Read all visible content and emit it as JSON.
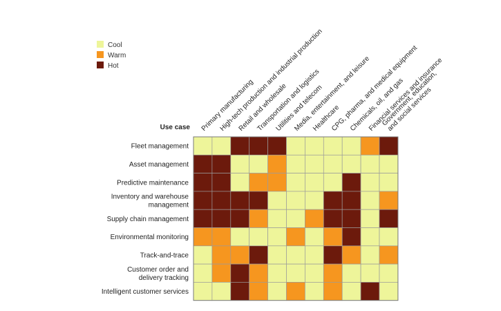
{
  "chart_data": {
    "type": "heatmap",
    "title": "",
    "row_header": "Use case",
    "colors": {
      "Cool": "#eef59a",
      "Warm": "#f6961f",
      "Hot": "#6c1a0c"
    },
    "legend": [
      "Cool",
      "Warm",
      "Hot"
    ],
    "legend_placement": "top-left",
    "columns": [
      {
        "lines": [
          "Primary manufacturing"
        ]
      },
      {
        "lines": [
          "High-tech production and industrial production"
        ]
      },
      {
        "lines": [
          "Retail and wholesale"
        ]
      },
      {
        "lines": [
          "Transportation and logistics"
        ]
      },
      {
        "lines": [
          "Utilities and telecom"
        ]
      },
      {
        "lines": [
          "Media, entertainment, and leisure"
        ]
      },
      {
        "lines": [
          "Healthcare"
        ]
      },
      {
        "lines": [
          "CPG, pharma, and medical equipment"
        ]
      },
      {
        "lines": [
          "Chemicals, oil, and gas"
        ]
      },
      {
        "lines": [
          "Financial services and insurance"
        ]
      },
      {
        "lines": [
          "Government, education,",
          "and social services"
        ]
      }
    ],
    "rows": [
      {
        "lines": [
          "Fleet management"
        ]
      },
      {
        "lines": [
          "Asset management"
        ]
      },
      {
        "lines": [
          "Predictive maintenance"
        ]
      },
      {
        "lines": [
          "Inventory and warehouse",
          "management"
        ]
      },
      {
        "lines": [
          "Supply chain management"
        ]
      },
      {
        "lines": [
          "Environmental monitoring"
        ]
      },
      {
        "lines": [
          "Track-and-trace"
        ]
      },
      {
        "lines": [
          "Customer order and",
          "delivery tracking"
        ]
      },
      {
        "lines": [
          "Intelligent customer services"
        ]
      }
    ],
    "values": [
      [
        "Cool",
        "Cool",
        "Hot",
        "Hot",
        "Hot",
        "Cool",
        "Cool",
        "Cool",
        "Cool",
        "Warm",
        "Hot"
      ],
      [
        "Hot",
        "Hot",
        "Cool",
        "Cool",
        "Warm",
        "Cool",
        "Cool",
        "Cool",
        "Cool",
        "Cool",
        "Cool"
      ],
      [
        "Hot",
        "Hot",
        "Cool",
        "Warm",
        "Warm",
        "Cool",
        "Cool",
        "Cool",
        "Hot",
        "Cool",
        "Cool"
      ],
      [
        "Hot",
        "Hot",
        "Hot",
        "Hot",
        "Cool",
        "Cool",
        "Cool",
        "Hot",
        "Hot",
        "Cool",
        "Warm"
      ],
      [
        "Hot",
        "Hot",
        "Hot",
        "Warm",
        "Cool",
        "Cool",
        "Warm",
        "Hot",
        "Hot",
        "Cool",
        "Hot"
      ],
      [
        "Warm",
        "Warm",
        "Cool",
        "Cool",
        "Cool",
        "Warm",
        "Cool",
        "Warm",
        "Hot",
        "Cool",
        "Cool"
      ],
      [
        "Cool",
        "Warm",
        "Warm",
        "Hot",
        "Cool",
        "Cool",
        "Cool",
        "Hot",
        "Warm",
        "Cool",
        "Warm"
      ],
      [
        "Cool",
        "Warm",
        "Hot",
        "Warm",
        "Cool",
        "Cool",
        "Cool",
        "Warm",
        "Cool",
        "Cool",
        "Cool"
      ],
      [
        "Cool",
        "Cool",
        "Hot",
        "Warm",
        "Cool",
        "Warm",
        "Cool",
        "Warm",
        "Cool",
        "Hot",
        "Cool"
      ]
    ]
  }
}
